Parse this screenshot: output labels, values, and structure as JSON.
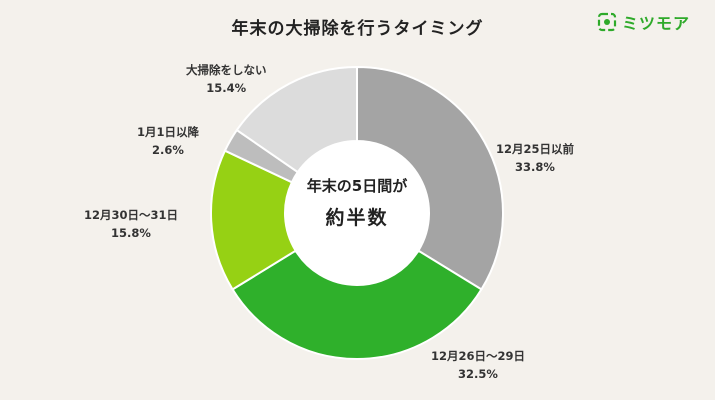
{
  "header": {
    "title": "年末の大掃除を行うタイミング",
    "brand": "ミツモア",
    "brand_icon": "mitsumore-logo-icon"
  },
  "center": {
    "line1": "年末の5日間が",
    "line2": "約半数"
  },
  "colors": {
    "accent": "#2eaa2a",
    "background": "#f4f1ec"
  },
  "chart_data": {
    "type": "pie",
    "donut": true,
    "title": "年末の大掃除を行うタイミング",
    "slices": [
      {
        "label": "12月25日以前",
        "value": 33.8,
        "value_label": "33.8%",
        "color": "#a4a4a4"
      },
      {
        "label": "12月26日〜29日",
        "value": 32.5,
        "value_label": "32.5%",
        "color": "#2fb02b"
      },
      {
        "label": "12月30日〜31日",
        "value": 15.8,
        "value_label": "15.8%",
        "color": "#96d114"
      },
      {
        "label": "1月1日以降",
        "value": 2.6,
        "value_label": "2.6%",
        "color": "#bdbdbd"
      },
      {
        "label": "大掃除をしない",
        "value": 15.4,
        "value_label": "15.4%",
        "color": "#dcdcdc"
      }
    ],
    "start": "12 o'clock",
    "direction": "clockwise",
    "legend": "none"
  }
}
